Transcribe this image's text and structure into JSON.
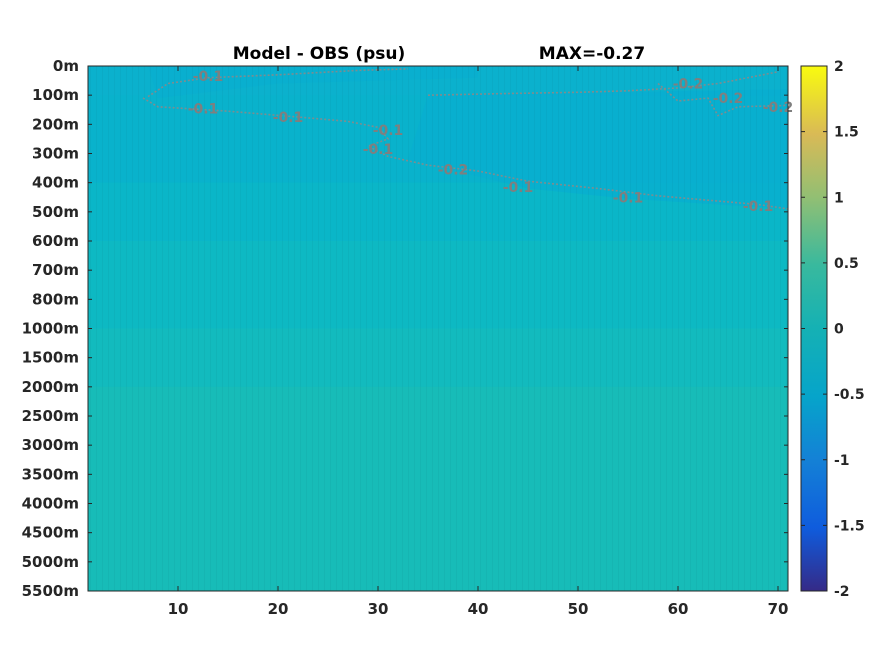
{
  "chart_data": {
    "type": "heatmap",
    "title": "Model - OBS (psu)",
    "max_label": "MAX=-0.27",
    "xlabel": "",
    "ylabel": "",
    "xlim": [
      1,
      71
    ],
    "x_ticks": [
      10,
      20,
      30,
      40,
      50,
      60,
      70
    ],
    "y_tick_labels": [
      "0m",
      "100m",
      "200m",
      "300m",
      "400m",
      "500m",
      "600m",
      "700m",
      "800m",
      "1000m",
      "1500m",
      "2000m",
      "2500m",
      "3000m",
      "3500m",
      "4000m",
      "4500m",
      "5000m",
      "5500m"
    ],
    "colorbar": {
      "min": -2,
      "max": 2,
      "ticks": [
        2,
        1.5,
        1,
        0.5,
        0,
        -0.5,
        -1,
        -1.5,
        -2
      ],
      "colormap": "parula"
    },
    "field_bands": [
      {
        "from_level": 0,
        "to_level": 1,
        "value": -0.12,
        "color": "#0bb1cd"
      },
      {
        "from_level": 1,
        "to_level": 4,
        "value": -0.12,
        "color": "#09b2cc"
      },
      {
        "from_level": 4,
        "to_level": 6,
        "value": -0.06,
        "color": "#0ab6c8"
      },
      {
        "from_level": 6,
        "to_level": 9,
        "value": -0.02,
        "color": "#0db9c3"
      },
      {
        "from_level": 9,
        "to_level": 11,
        "value": 0.0,
        "color": "#12bbbe"
      },
      {
        "from_level": 11,
        "to_level": 18,
        "value": 0.02,
        "color": "#17bcb8"
      }
    ],
    "contours": [
      {
        "level": -0.1,
        "label": "-0.1"
      },
      {
        "level": -0.2,
        "label": "-0.2"
      }
    ],
    "contour_labels": [
      {
        "text": "-0.1",
        "x": 13,
        "level": 0.35
      },
      {
        "text": "-0.1",
        "x": 12.5,
        "level": 1.45
      },
      {
        "text": "-0.1",
        "x": 21,
        "level": 1.75
      },
      {
        "text": "-0.1",
        "x": 31,
        "level": 2.2
      },
      {
        "text": "-0.1",
        "x": 30,
        "level": 2.85
      },
      {
        "text": "-0.2",
        "x": 37.5,
        "level": 3.55
      },
      {
        "text": "-0.1",
        "x": 44,
        "level": 4.15
      },
      {
        "text": "-0.1",
        "x": 55,
        "level": 4.5
      },
      {
        "text": "-0.1",
        "x": 68,
        "level": 4.8
      },
      {
        "text": "-0.2",
        "x": 61,
        "level": 0.6
      },
      {
        "text": "-0.2",
        "x": 65,
        "level": 1.1
      },
      {
        "text": "-0.2",
        "x": 70,
        "level": 1.4
      }
    ]
  }
}
